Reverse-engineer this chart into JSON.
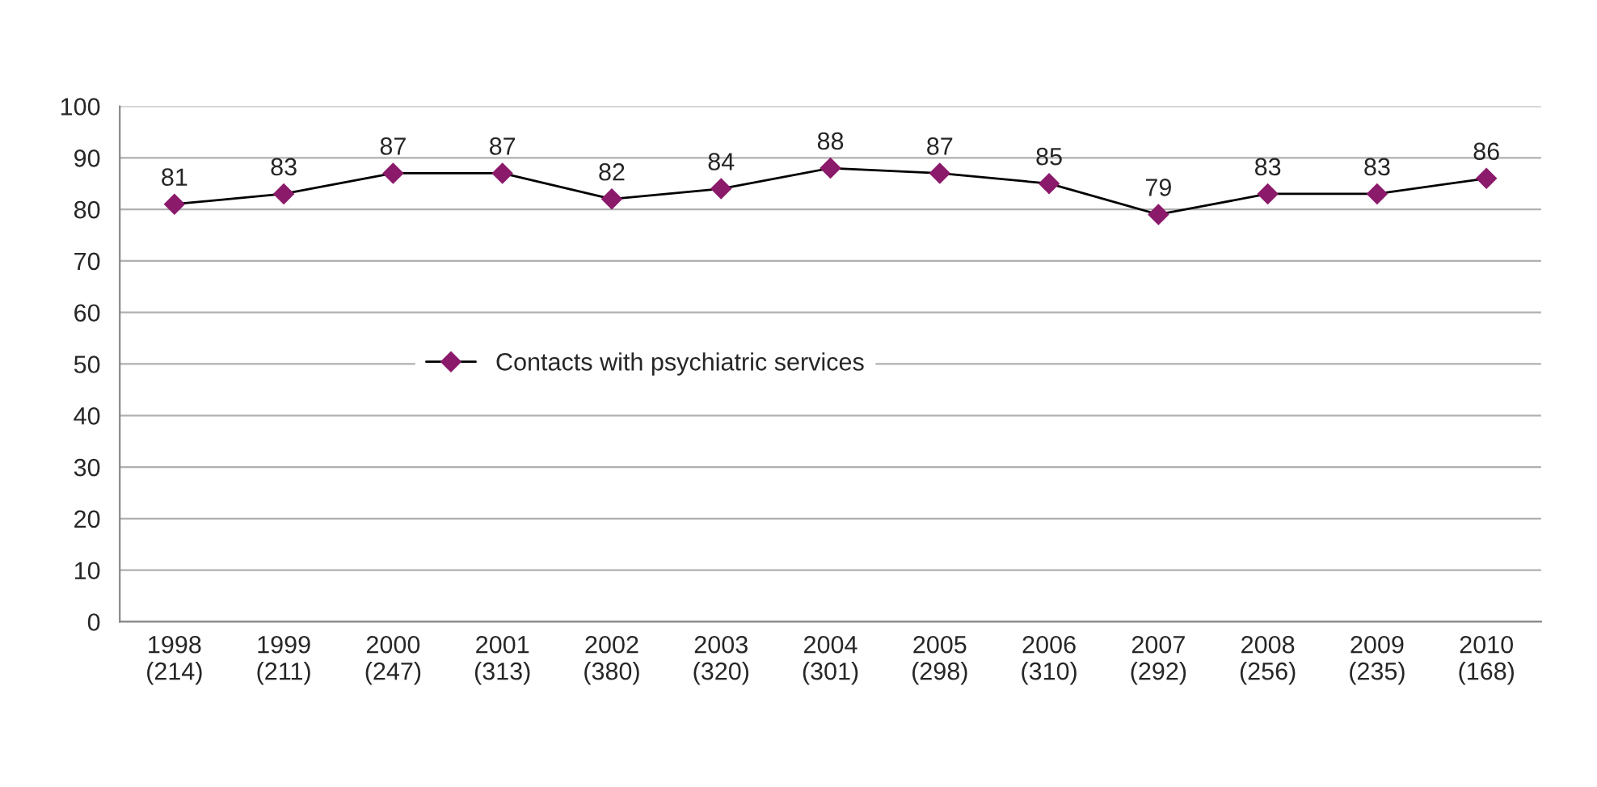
{
  "chart_data": {
    "type": "line",
    "categories": [
      "1998\n(214)",
      "1999\n(211)",
      "2000\n(247)",
      "2001\n(313)",
      "2002\n(380)",
      "2003\n(320)",
      "2004\n(301)",
      "2005\n(298)",
      "2006\n(310)",
      "2007\n(292)",
      "2008\n(256)",
      "2009\n(235)",
      "2010\n(168)"
    ],
    "series": [
      {
        "name": "Contacts with psychiatric services",
        "color": "#8b1a6b",
        "values": [
          81,
          83,
          87,
          87,
          82,
          84,
          88,
          87,
          85,
          79,
          83,
          83,
          86
        ]
      }
    ],
    "ylim": [
      0,
      100
    ],
    "yticks": [
      0,
      10,
      20,
      30,
      40,
      50,
      60,
      70,
      80,
      90,
      100
    ],
    "grid": "y",
    "legend": "center left",
    "marker": "diamond",
    "line_style": "solid",
    "data_labels": true
  }
}
